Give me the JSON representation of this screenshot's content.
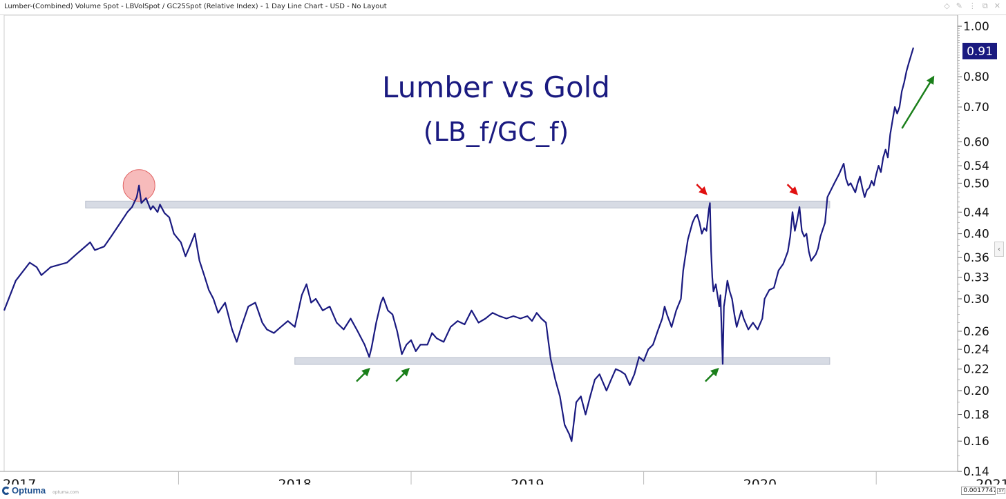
{
  "window": {
    "title": "Lumber-(Combined) Volume Spot - LBVolSpot / GC25Spot (Relative Index) - 1 Day Line Chart - USD - No Layout",
    "controls": [
      "◇",
      "✎",
      "⋮",
      "⧉",
      "✕"
    ]
  },
  "footer": {
    "logo_text": "Optuma",
    "logo_url": "optuma.com",
    "readout_value": "0.0017747",
    "readout_mode": "XY"
  },
  "side_tab": "‹",
  "chart_data": {
    "type": "line",
    "title": "Lumber vs Gold",
    "subtitle": "(LB_f/GC_f)",
    "y_scale": "log",
    "ylim": [
      0.14,
      1.05
    ],
    "y_ticks": [
      "1.00",
      "0.80",
      "0.70",
      "0.60",
      "0.54",
      "0.50",
      "0.44",
      "0.40",
      "0.36",
      "0.33",
      "0.30",
      "0.26",
      "0.24",
      "0.22",
      "0.20",
      "0.18",
      "0.16",
      "0.14"
    ],
    "last_value": "0.91",
    "x_labels": [
      "2017",
      "2018",
      "2019",
      "2020",
      "2021"
    ],
    "xlim": [
      2017.25,
      2021.35
    ],
    "series": [
      {
        "name": "LB_f/GC_f",
        "color": "#1a1a80",
        "points": [
          [
            2017.25,
            0.285
          ],
          [
            2017.3,
            0.325
          ],
          [
            2017.36,
            0.352
          ],
          [
            2017.39,
            0.345
          ],
          [
            2017.41,
            0.333
          ],
          [
            2017.45,
            0.345
          ],
          [
            2017.52,
            0.352
          ],
          [
            2017.56,
            0.365
          ],
          [
            2017.62,
            0.385
          ],
          [
            2017.64,
            0.372
          ],
          [
            2017.68,
            0.378
          ],
          [
            2017.71,
            0.395
          ],
          [
            2017.75,
            0.42
          ],
          [
            2017.78,
            0.44
          ],
          [
            2017.8,
            0.45
          ],
          [
            2017.82,
            0.47
          ],
          [
            2017.83,
            0.495
          ],
          [
            2017.84,
            0.458
          ],
          [
            2017.86,
            0.468
          ],
          [
            2017.88,
            0.445
          ],
          [
            2017.89,
            0.452
          ],
          [
            2017.91,
            0.44
          ],
          [
            2017.92,
            0.455
          ],
          [
            2017.94,
            0.438
          ],
          [
            2017.96,
            0.43
          ],
          [
            2017.98,
            0.4
          ],
          [
            2018.01,
            0.385
          ],
          [
            2018.03,
            0.362
          ],
          [
            2018.05,
            0.38
          ],
          [
            2018.07,
            0.4
          ],
          [
            2018.09,
            0.355
          ],
          [
            2018.11,
            0.333
          ],
          [
            2018.13,
            0.312
          ],
          [
            2018.15,
            0.3
          ],
          [
            2018.17,
            0.282
          ],
          [
            2018.2,
            0.295
          ],
          [
            2018.23,
            0.262
          ],
          [
            2018.25,
            0.248
          ],
          [
            2018.27,
            0.265
          ],
          [
            2018.3,
            0.29
          ],
          [
            2018.33,
            0.295
          ],
          [
            2018.36,
            0.27
          ],
          [
            2018.38,
            0.262
          ],
          [
            2018.41,
            0.258
          ],
          [
            2018.44,
            0.265
          ],
          [
            2018.47,
            0.272
          ],
          [
            2018.5,
            0.265
          ],
          [
            2018.53,
            0.305
          ],
          [
            2018.55,
            0.32
          ],
          [
            2018.57,
            0.295
          ],
          [
            2018.59,
            0.3
          ],
          [
            2018.62,
            0.285
          ],
          [
            2018.65,
            0.29
          ],
          [
            2018.68,
            0.27
          ],
          [
            2018.71,
            0.262
          ],
          [
            2018.74,
            0.275
          ],
          [
            2018.77,
            0.26
          ],
          [
            2018.8,
            0.245
          ],
          [
            2018.82,
            0.232
          ],
          [
            2018.83,
            0.242
          ],
          [
            2018.85,
            0.27
          ],
          [
            2018.87,
            0.295
          ],
          [
            2018.88,
            0.302
          ],
          [
            2018.9,
            0.285
          ],
          [
            2018.92,
            0.28
          ],
          [
            2018.94,
            0.26
          ],
          [
            2018.96,
            0.235
          ],
          [
            2018.98,
            0.245
          ],
          [
            2019.0,
            0.25
          ],
          [
            2019.02,
            0.238
          ],
          [
            2019.04,
            0.245
          ],
          [
            2019.07,
            0.245
          ],
          [
            2019.09,
            0.258
          ],
          [
            2019.11,
            0.252
          ],
          [
            2019.14,
            0.248
          ],
          [
            2019.17,
            0.265
          ],
          [
            2019.2,
            0.272
          ],
          [
            2019.23,
            0.268
          ],
          [
            2019.26,
            0.285
          ],
          [
            2019.29,
            0.27
          ],
          [
            2019.32,
            0.275
          ],
          [
            2019.35,
            0.282
          ],
          [
            2019.38,
            0.278
          ],
          [
            2019.41,
            0.275
          ],
          [
            2019.44,
            0.278
          ],
          [
            2019.47,
            0.275
          ],
          [
            2019.5,
            0.278
          ],
          [
            2019.52,
            0.272
          ],
          [
            2019.54,
            0.282
          ],
          [
            2019.56,
            0.275
          ],
          [
            2019.58,
            0.27
          ],
          [
            2019.6,
            0.23
          ],
          [
            2019.62,
            0.21
          ],
          [
            2019.64,
            0.195
          ],
          [
            2019.66,
            0.172
          ],
          [
            2019.68,
            0.165
          ],
          [
            2019.69,
            0.16
          ],
          [
            2019.71,
            0.19
          ],
          [
            2019.73,
            0.195
          ],
          [
            2019.75,
            0.18
          ],
          [
            2019.77,
            0.195
          ],
          [
            2019.79,
            0.21
          ],
          [
            2019.81,
            0.215
          ],
          [
            2019.84,
            0.2
          ],
          [
            2019.86,
            0.21
          ],
          [
            2019.88,
            0.22
          ],
          [
            2019.9,
            0.218
          ],
          [
            2019.92,
            0.215
          ],
          [
            2019.94,
            0.205
          ],
          [
            2019.96,
            0.215
          ],
          [
            2019.98,
            0.232
          ],
          [
            2020.0,
            0.228
          ],
          [
            2020.02,
            0.24
          ],
          [
            2020.04,
            0.245
          ],
          [
            2020.06,
            0.26
          ],
          [
            2020.08,
            0.275
          ],
          [
            2020.09,
            0.29
          ],
          [
            2020.1,
            0.28
          ],
          [
            2020.12,
            0.265
          ],
          [
            2020.14,
            0.285
          ],
          [
            2020.16,
            0.3
          ],
          [
            2020.17,
            0.34
          ],
          [
            2020.19,
            0.39
          ],
          [
            2020.21,
            0.42
          ],
          [
            2020.22,
            0.43
          ],
          [
            2020.23,
            0.435
          ],
          [
            2020.24,
            0.42
          ],
          [
            2020.25,
            0.4
          ],
          [
            2020.26,
            0.41
          ],
          [
            2020.27,
            0.405
          ],
          [
            2020.28,
            0.445
          ],
          [
            2020.285,
            0.458
          ],
          [
            2020.29,
            0.37
          ],
          [
            2020.295,
            0.33
          ],
          [
            2020.3,
            0.31
          ],
          [
            2020.31,
            0.32
          ],
          [
            2020.315,
            0.31
          ],
          [
            2020.32,
            0.3
          ],
          [
            2020.325,
            0.29
          ],
          [
            2020.33,
            0.305
          ],
          [
            2020.335,
            0.262
          ],
          [
            2020.34,
            0.225
          ],
          [
            2020.345,
            0.29
          ],
          [
            2020.35,
            0.3
          ],
          [
            2020.36,
            0.325
          ],
          [
            2020.37,
            0.31
          ],
          [
            2020.38,
            0.3
          ],
          [
            2020.39,
            0.28
          ],
          [
            2020.4,
            0.265
          ],
          [
            2020.42,
            0.285
          ],
          [
            2020.43,
            0.275
          ],
          [
            2020.45,
            0.262
          ],
          [
            2020.47,
            0.27
          ],
          [
            2020.49,
            0.262
          ],
          [
            2020.51,
            0.275
          ],
          [
            2020.52,
            0.3
          ],
          [
            2020.54,
            0.312
          ],
          [
            2020.56,
            0.315
          ],
          [
            2020.58,
            0.34
          ],
          [
            2020.6,
            0.35
          ],
          [
            2020.62,
            0.37
          ],
          [
            2020.63,
            0.395
          ],
          [
            2020.64,
            0.44
          ],
          [
            2020.65,
            0.405
          ],
          [
            2020.66,
            0.425
          ],
          [
            2020.67,
            0.45
          ],
          [
            2020.68,
            0.405
          ],
          [
            2020.69,
            0.395
          ],
          [
            2020.7,
            0.4
          ],
          [
            2020.71,
            0.37
          ],
          [
            2020.72,
            0.355
          ],
          [
            2020.73,
            0.36
          ],
          [
            2020.74,
            0.365
          ],
          [
            2020.75,
            0.375
          ],
          [
            2020.76,
            0.395
          ],
          [
            2020.78,
            0.42
          ],
          [
            2020.79,
            0.47
          ],
          [
            2020.8,
            0.48
          ],
          [
            2020.82,
            0.5
          ],
          [
            2020.84,
            0.52
          ],
          [
            2020.86,
            0.545
          ],
          [
            2020.87,
            0.51
          ],
          [
            2020.88,
            0.495
          ],
          [
            2020.89,
            0.5
          ],
          [
            2020.9,
            0.49
          ],
          [
            2020.91,
            0.48
          ],
          [
            2020.92,
            0.5
          ],
          [
            2020.93,
            0.515
          ],
          [
            2020.94,
            0.49
          ],
          [
            2020.95,
            0.47
          ],
          [
            2020.96,
            0.485
          ],
          [
            2020.97,
            0.49
          ],
          [
            2020.98,
            0.505
          ],
          [
            2020.99,
            0.495
          ],
          [
            2021.0,
            0.52
          ],
          [
            2021.01,
            0.54
          ],
          [
            2021.02,
            0.525
          ],
          [
            2021.03,
            0.56
          ],
          [
            2021.04,
            0.58
          ],
          [
            2021.05,
            0.56
          ],
          [
            2021.06,
            0.62
          ],
          [
            2021.07,
            0.66
          ],
          [
            2021.08,
            0.7
          ],
          [
            2021.09,
            0.68
          ],
          [
            2021.1,
            0.7
          ],
          [
            2021.11,
            0.75
          ],
          [
            2021.12,
            0.78
          ],
          [
            2021.13,
            0.82
          ],
          [
            2021.14,
            0.85
          ],
          [
            2021.15,
            0.88
          ],
          [
            2021.16,
            0.91
          ]
        ]
      }
    ],
    "resistance_band": {
      "value": 0.455,
      "x_from": 2017.6,
      "x_to": 2020.8
    },
    "support_band": {
      "value": 0.228,
      "x_from": 2018.5,
      "x_to": 2020.8
    },
    "highlight_circle": {
      "x": 2017.83,
      "y": 0.495
    },
    "green_arrows": [
      {
        "x": 2018.83,
        "y": 0.224
      },
      {
        "x": 2019.0,
        "y": 0.224
      },
      {
        "x": 2020.33,
        "y": 0.224
      },
      {
        "x": 2021.22,
        "y": 0.78
      }
    ],
    "red_arrows": [
      {
        "x": 2020.28,
        "y": 0.46
      },
      {
        "x": 2020.67,
        "y": 0.46
      }
    ]
  }
}
